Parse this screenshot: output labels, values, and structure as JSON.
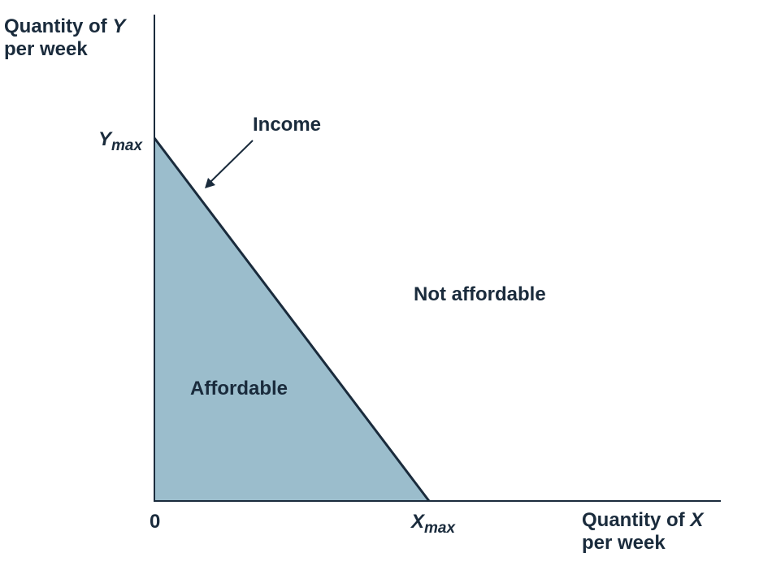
{
  "diagram": {
    "y_axis": {
      "title_prefix": "Quantity of ",
      "variable": "Y",
      "title_suffix": "per week"
    },
    "x_axis": {
      "title_prefix": "Quantity of ",
      "variable": "X",
      "title_suffix": "per week"
    },
    "origin_label": "0",
    "ymax": {
      "base": "Y",
      "subscript": "max"
    },
    "xmax": {
      "base": "X",
      "subscript": "max"
    },
    "income_label": "Income",
    "regions": {
      "affordable": "Affordable",
      "not_affordable": "Not affordable"
    },
    "colors": {
      "affordable_fill": "#9bbdcc",
      "line": "#1a2b3c"
    }
  }
}
